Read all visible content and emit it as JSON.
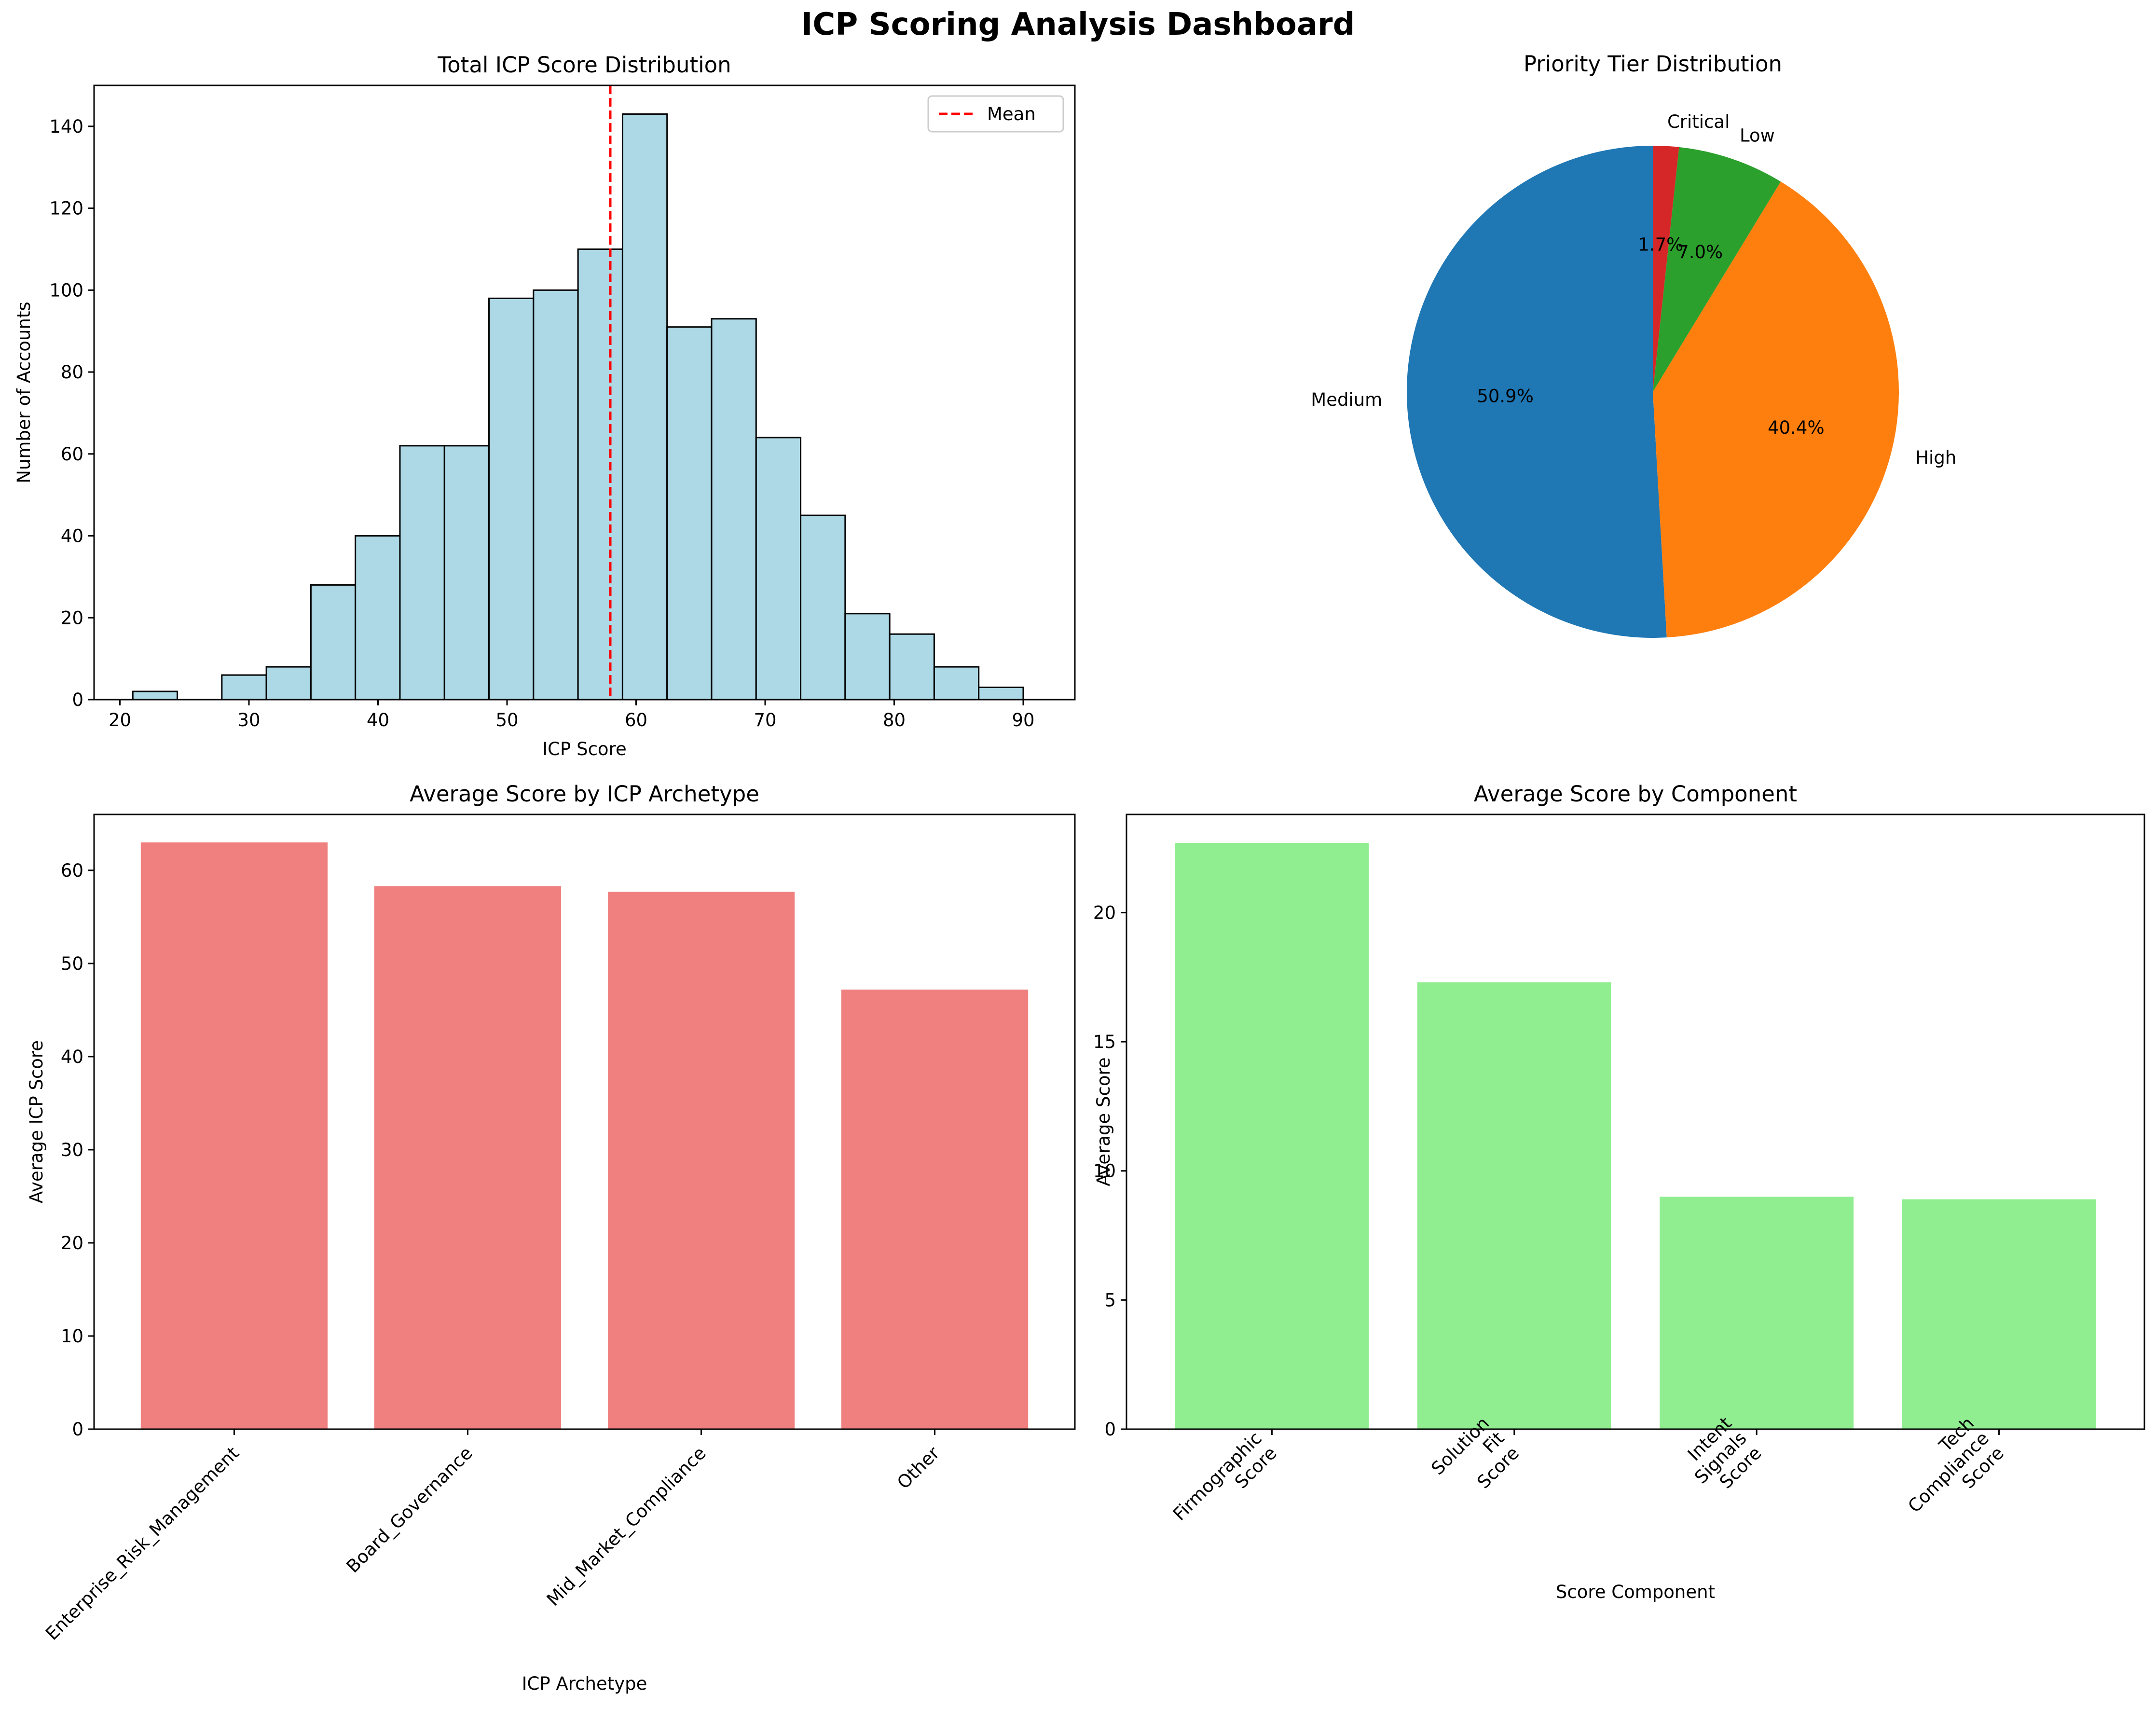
{
  "suptitle": "ICP Scoring Analysis Dashboard",
  "chart_data": [
    {
      "type": "bar",
      "subtype": "histogram",
      "title": "Total ICP Score Distribution",
      "xlabel": "ICP Score",
      "ylabel": "Number of Accounts",
      "xlim": [
        18,
        94
      ],
      "ylim": [
        0,
        150
      ],
      "xticks": [
        20,
        30,
        40,
        50,
        60,
        70,
        80,
        90
      ],
      "yticks": [
        0,
        20,
        40,
        60,
        80,
        100,
        120,
        140
      ],
      "bin_start": 21,
      "bin_width": 3.45,
      "counts": [
        2,
        0,
        6,
        8,
        28,
        40,
        62,
        62,
        98,
        100,
        110,
        143,
        91,
        93,
        64,
        45,
        21,
        16,
        8,
        3
      ],
      "bar_color": "#add8e6",
      "edge_color": "#000000",
      "mean": 58,
      "mean_color": "#ff0000",
      "legend": [
        {
          "label": "Mean"
        }
      ],
      "legend_position": "top-right"
    },
    {
      "type": "pie",
      "title": "Priority Tier Distribution",
      "start_angle": 90,
      "slices": [
        {
          "label": "Medium",
          "value": 50.9,
          "pct_label": "50.9%",
          "color": "#1f77b4"
        },
        {
          "label": "High",
          "value": 40.4,
          "pct_label": "40.4%",
          "color": "#ff7f0e"
        },
        {
          "label": "Low",
          "value": 7.0,
          "pct_label": "7.0%",
          "color": "#2ca02c"
        },
        {
          "label": "Critical",
          "value": 1.7,
          "pct_label": "1.7%",
          "color": "#d62728"
        }
      ]
    },
    {
      "type": "bar",
      "title": "Average Score by ICP Archetype",
      "xlabel": "ICP Archetype",
      "ylabel": "Average ICP Score",
      "ylim": [
        0,
        66
      ],
      "yticks": [
        0,
        10,
        20,
        30,
        40,
        50,
        60
      ],
      "categories": [
        "Enterprise_Risk_Management",
        "Board_Governance",
        "Mid_Market_Compliance",
        "Other"
      ],
      "values": [
        63.0,
        58.3,
        57.7,
        47.2
      ],
      "bar_color": "#f08080"
    },
    {
      "type": "bar",
      "title": "Average Score by Component",
      "xlabel": "Score Component",
      "ylabel": "Average Score",
      "ylim": [
        0,
        23.8
      ],
      "yticks": [
        0,
        5,
        10,
        15,
        20
      ],
      "categories": [
        "Firmographic\nScore",
        "Solution\nFit\nScore",
        "Intent\nSignals\nScore",
        "Tech\nCompliance\nScore"
      ],
      "values": [
        22.7,
        17.3,
        9.0,
        8.9
      ],
      "bar_color": "#90ee90"
    }
  ]
}
